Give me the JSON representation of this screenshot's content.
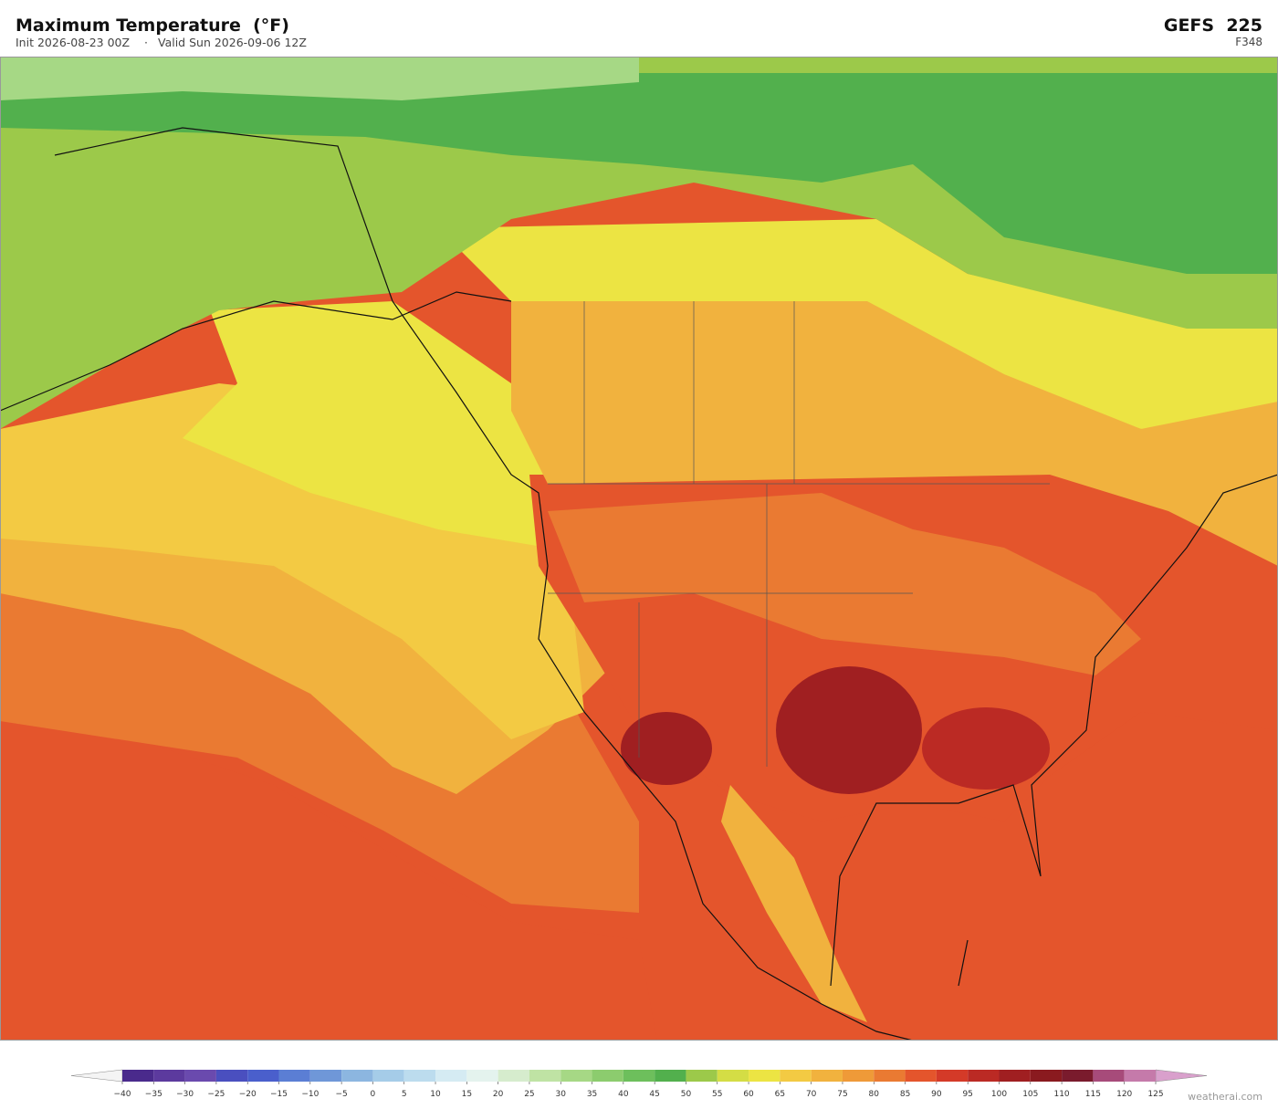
{
  "header": {
    "title": "Maximum Temperature  (°F)",
    "init": "Init 2026-08-23 00Z",
    "separator": "·",
    "valid": "Valid Sun 2026-09-06 12Z",
    "model": "GEFS  225",
    "forecast_hour": "F348"
  },
  "colorbar": {
    "ticks": [
      {
        "value": -40,
        "label": "−40"
      },
      {
        "value": -35,
        "label": "−35"
      },
      {
        "value": -30,
        "label": "−30"
      },
      {
        "value": -25,
        "label": "−25"
      },
      {
        "value": -20,
        "label": "−20"
      },
      {
        "value": -15,
        "label": "−15"
      },
      {
        "value": -10,
        "label": "−10"
      },
      {
        "value": -5,
        "label": "−5"
      },
      0,
      5,
      10,
      15,
      20,
      25,
      30,
      35,
      40,
      45,
      50,
      55,
      60,
      65,
      70,
      75,
      80,
      85,
      90,
      95,
      100,
      105,
      110,
      115,
      120,
      125
    ],
    "colors": [
      "#4a2a8c",
      "#5c3a9e",
      "#6a4aae",
      "#4a4fbf",
      "#4a5fcc",
      "#5b7ed4",
      "#6f97d8",
      "#8cb6e0",
      "#a5cce8",
      "#bcdcee",
      "#d5ebf3",
      "#e4f3ee",
      "#d6eccd",
      "#bfe3a4",
      "#a6d885",
      "#8ccc6e",
      "#6dbf5c",
      "#52b04d",
      "#9cc94a",
      "#d4dd45",
      "#ece443",
      "#f3ca43",
      "#f1b23e",
      "#ef9a38",
      "#ea7a32",
      "#e4552c",
      "#d43a28",
      "#bb2a24",
      "#a01f21",
      "#8a1a1f",
      "#7a1b2d",
      "#a74b7a",
      "#c57aaa"
    ],
    "under_color": "#f4f4f4",
    "over_color": "#d9a0cc"
  },
  "footer": {
    "watermark": "weatherai.com"
  }
}
